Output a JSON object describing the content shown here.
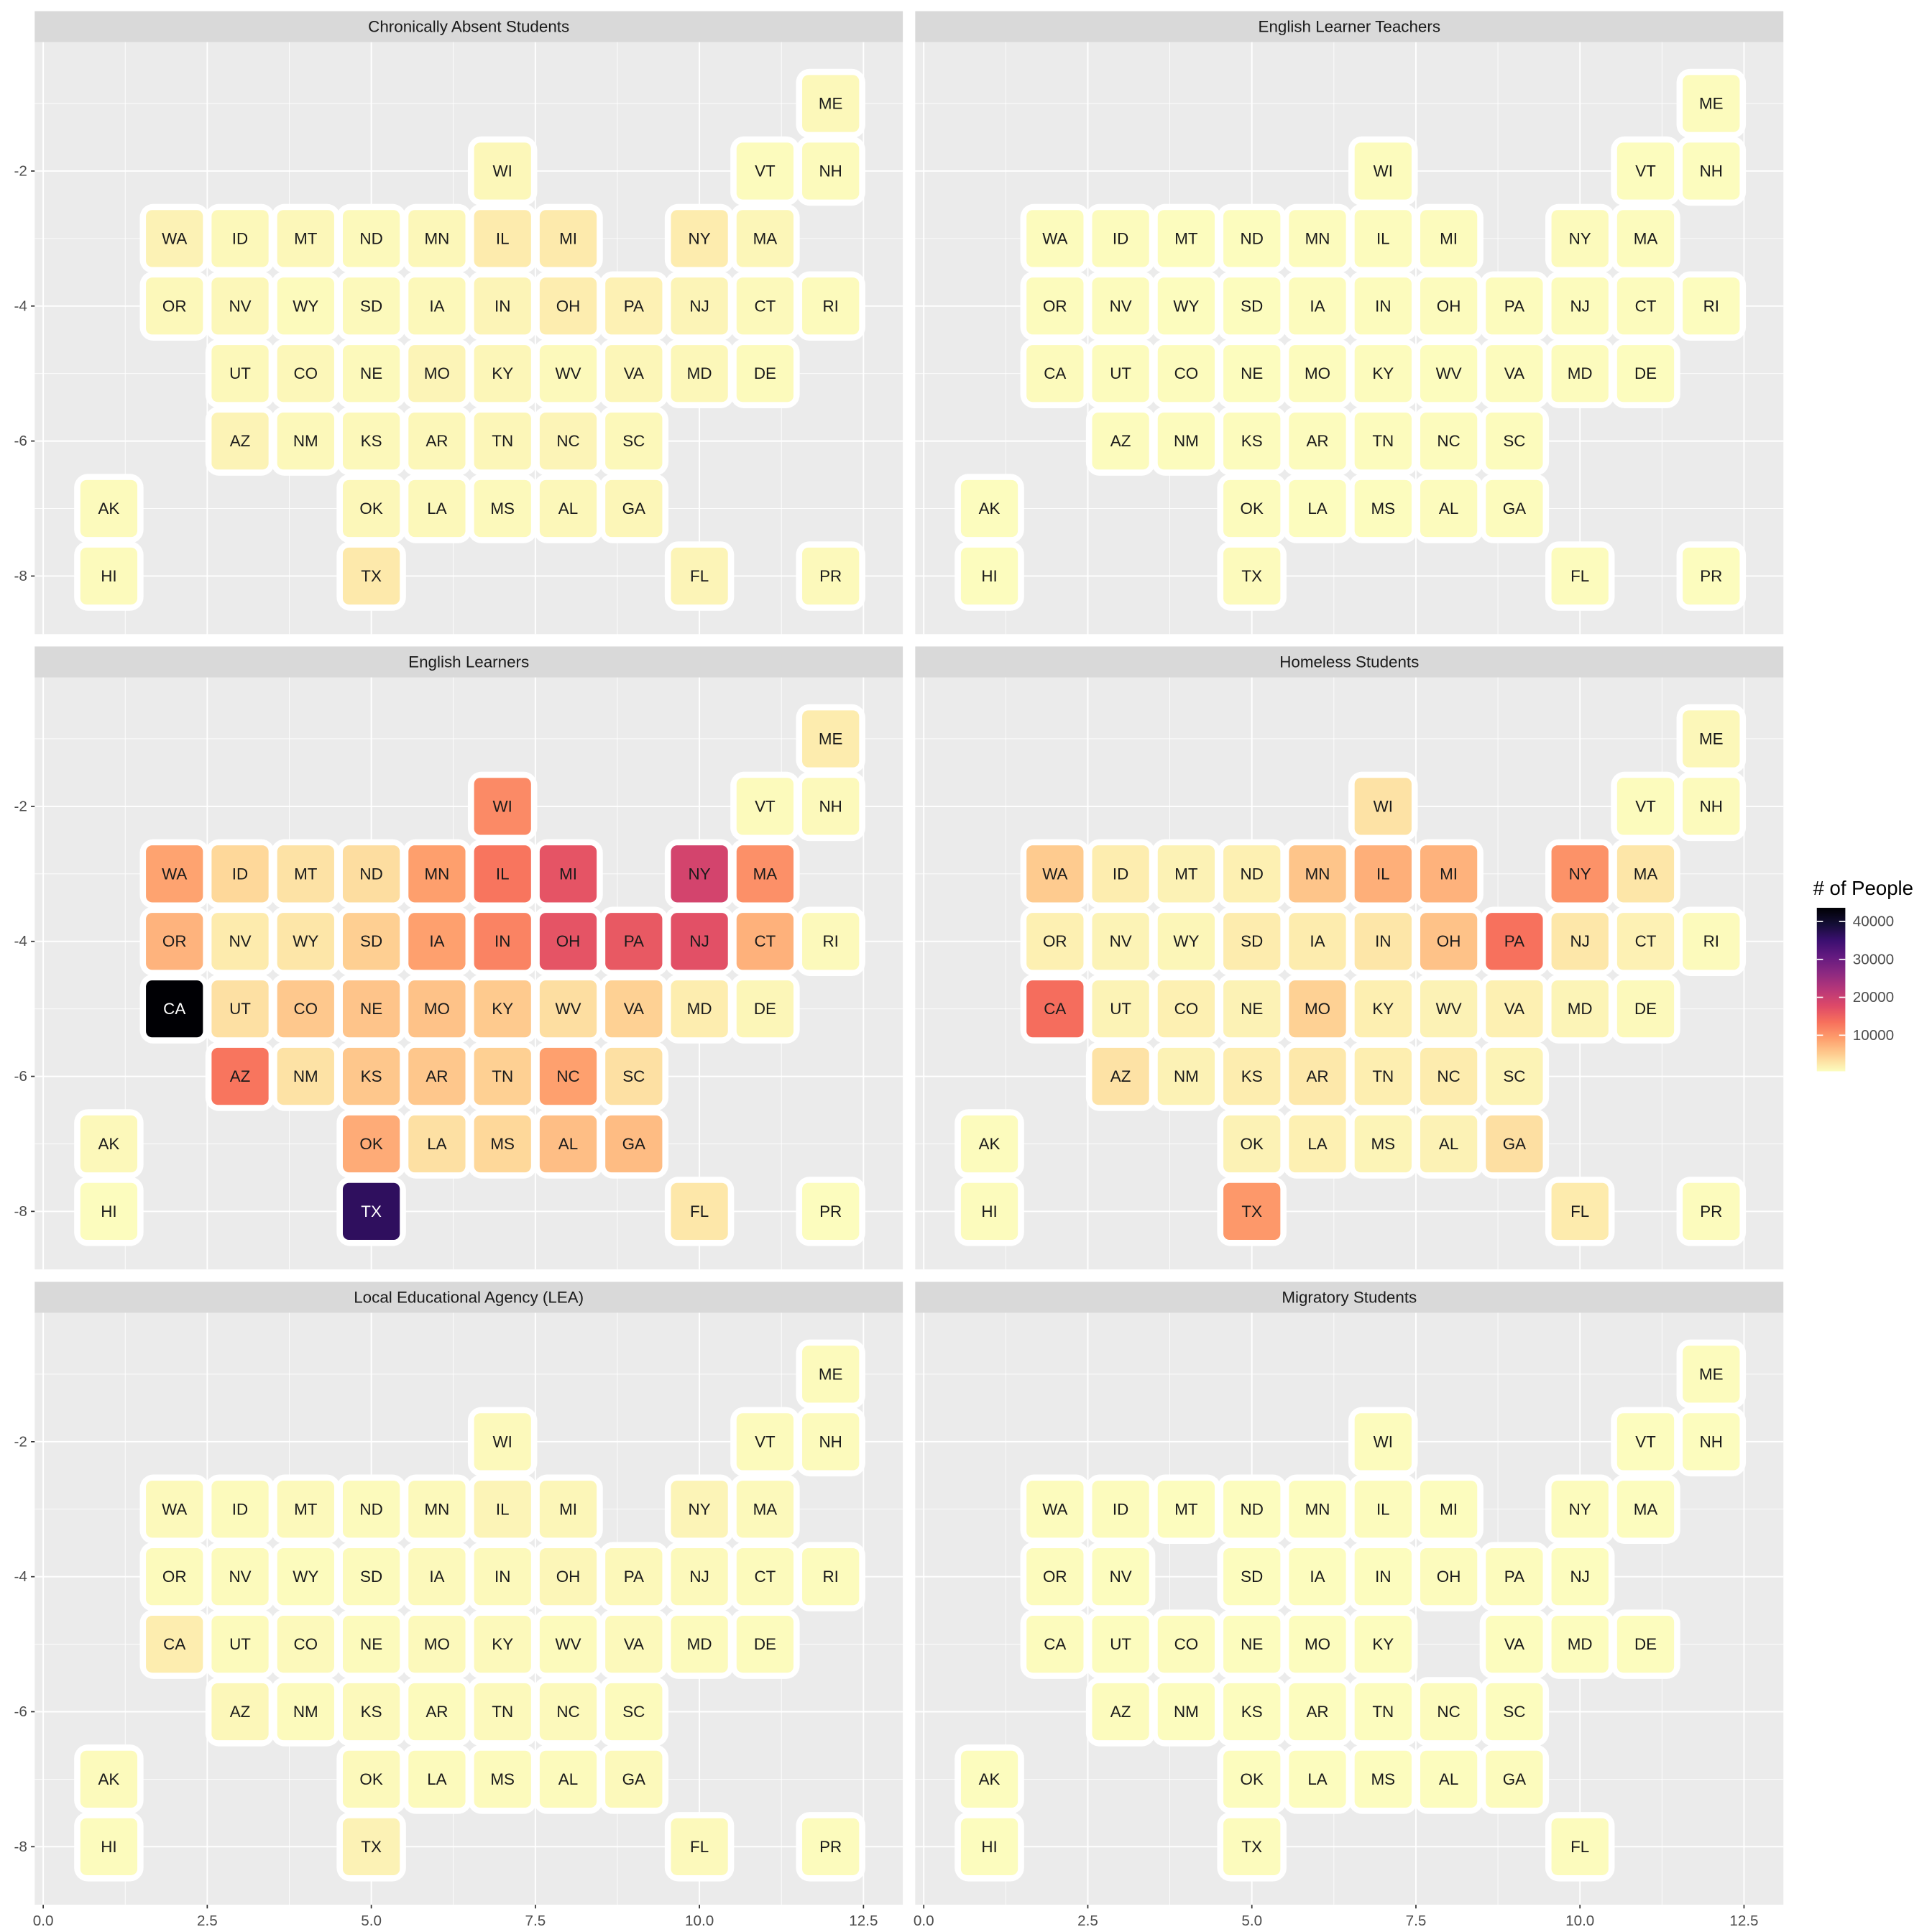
{
  "chart_data": {
    "type": "tile",
    "xlim": [
      -0.13,
      13.1
    ],
    "ylim": [
      -8.86,
      -0.09
    ],
    "xticks": [
      {
        "value": 0,
        "label": "0.0"
      },
      2.5,
      {
        "value": 5,
        "label": "5.0"
      },
      7.5,
      {
        "value": 10,
        "label": "10.0"
      },
      12.5
    ],
    "yticks": [
      -8,
      -6,
      -4,
      -2
    ],
    "grid": true,
    "grid_cells": {
      "states": [
        "ME",
        "WI",
        "VT",
        "NH",
        "WA",
        "ID",
        "MT",
        "ND",
        "MN",
        "IL",
        "MI",
        "NY",
        "MA",
        "OR",
        "NV",
        "WY",
        "SD",
        "IA",
        "IN",
        "OH",
        "PA",
        "NJ",
        "CT",
        "RI",
        "CA",
        "UT",
        "CO",
        "NE",
        "MO",
        "KY",
        "WV",
        "VA",
        "MD",
        "DE",
        "AZ",
        "NM",
        "KS",
        "AR",
        "TN",
        "NC",
        "SC",
        "AK",
        "OK",
        "LA",
        "MS",
        "AL",
        "GA",
        "HI",
        "TX",
        "FL",
        "PR"
      ],
      "x": [
        12,
        7,
        11,
        12,
        2,
        3,
        4,
        5,
        6,
        7,
        8,
        10,
        11,
        2,
        3,
        4,
        5,
        6,
        7,
        8,
        9,
        10,
        11,
        12,
        2,
        3,
        4,
        5,
        6,
        7,
        8,
        9,
        10,
        11,
        3,
        4,
        5,
        6,
        7,
        8,
        9,
        1,
        5,
        6,
        7,
        8,
        9,
        1,
        5,
        10,
        12
      ],
      "y": [
        -1,
        -2,
        -2,
        -2,
        -3,
        -3,
        -3,
        -3,
        -3,
        -3,
        -3,
        -3,
        -3,
        -4,
        -4,
        -4,
        -4,
        -4,
        -4,
        -4,
        -4,
        -4,
        -4,
        -4,
        -5,
        -5,
        -5,
        -5,
        -5,
        -5,
        -5,
        -5,
        -5,
        -5,
        -6,
        -6,
        -6,
        -6,
        -6,
        -6,
        -6,
        -7,
        -7,
        -7,
        -7,
        -7,
        -7,
        -8,
        -8,
        -8,
        -8
      ]
    },
    "facets": [
      {
        "title": "Chronically Absent Students",
        "values": [
          1000,
          1100,
          700,
          800,
          1500,
          1000,
          1100,
          900,
          1100,
          2200,
          2300,
          2100,
          1200,
          1000,
          1100,
          800,
          900,
          1000,
          1300,
          2000,
          1600,
          1300,
          900,
          800,
          null,
          1000,
          1100,
          900,
          1300,
          1200,
          900,
          1200,
          1100,
          800,
          1400,
          1000,
          1000,
          1100,
          1200,
          1300,
          1000,
          800,
          1100,
          1000,
          900,
          1100,
          1200,
          800,
          2400,
          1300,
          900
        ]
      },
      {
        "title": "English Learner Teachers",
        "values": [
          650,
          700,
          600,
          620,
          700,
          650,
          620,
          600,
          680,
          720,
          700,
          750,
          680,
          680,
          650,
          600,
          620,
          650,
          700,
          700,
          680,
          700,
          650,
          600,
          750,
          650,
          680,
          640,
          660,
          680,
          620,
          700,
          680,
          600,
          700,
          650,
          660,
          650,
          680,
          700,
          650,
          600,
          660,
          640,
          640,
          650,
          680,
          600,
          750,
          700,
          600
        ]
      },
      {
        "title": "English Learners",
        "values": [
          2100,
          11000,
          800,
          900,
          8800,
          4000,
          3000,
          3500,
          9100,
          13000,
          16500,
          19000,
          10500,
          7300,
          2200,
          2700,
          4800,
          9000,
          11700,
          16500,
          16000,
          17000,
          7500,
          900,
          43600,
          3200,
          5400,
          5800,
          6000,
          5300,
          3400,
          4600,
          2000,
          1200,
          13000,
          3000,
          5500,
          5500,
          4700,
          9000,
          3200,
          1000,
          8000,
          3200,
          4000,
          6300,
          6500,
          600,
          36300,
          2600,
          600
        ]
      },
      {
        "title": "Homeless Students",
        "values": [
          1100,
          3000,
          700,
          800,
          5200,
          2000,
          1500,
          1700,
          5700,
          7700,
          7400,
          10300,
          2700,
          1700,
          1400,
          1200,
          2100,
          2100,
          2700,
          6000,
          13300,
          2600,
          1600,
          800,
          13800,
          1400,
          1700,
          1500,
          4600,
          1800,
          1500,
          1700,
          1300,
          900,
          3000,
          1500,
          2000,
          2500,
          1900,
          2100,
          1400,
          700,
          1500,
          1700,
          1300,
          1500,
          3300,
          700,
          9800,
          2200,
          700
        ]
      },
      {
        "title": "Local Educational Agency (LEA)",
        "values": [
          800,
          900,
          750,
          750,
          900,
          800,
          850,
          800,
          850,
          1300,
          1200,
          1300,
          850,
          800,
          750,
          700,
          800,
          850,
          900,
          1200,
          1000,
          850,
          800,
          700,
          2000,
          800,
          850,
          800,
          850,
          850,
          800,
          850,
          800,
          700,
          1100,
          800,
          850,
          800,
          850,
          850,
          800,
          750,
          850,
          800,
          800,
          800,
          850,
          700,
          1500,
          900,
          700
        ]
      },
      {
        "title": "Migratory Students",
        "values": [
          650,
          650,
          620,
          620,
          700,
          650,
          620,
          620,
          640,
          650,
          640,
          650,
          620,
          650,
          640,
          null,
          620,
          640,
          640,
          650,
          650,
          620,
          null,
          null,
          700,
          640,
          650,
          640,
          620,
          630,
          null,
          620,
          620,
          610,
          650,
          640,
          640,
          640,
          620,
          650,
          640,
          620,
          640,
          640,
          640,
          620,
          650,
          620,
          680,
          650,
          null
        ]
      }
    ],
    "legend": {
      "title": "# of People",
      "lim": [
        500,
        43600
      ],
      "ticks": [
        10000,
        20000,
        30000,
        40000
      ],
      "palette": [
        "#FCFDBF",
        "#FECF92",
        "#FE9F6D",
        "#F7705C",
        "#DE4968",
        "#B73779",
        "#8C2981",
        "#641A80",
        "#3B0F70",
        "#140E36",
        "#000004"
      ]
    }
  }
}
